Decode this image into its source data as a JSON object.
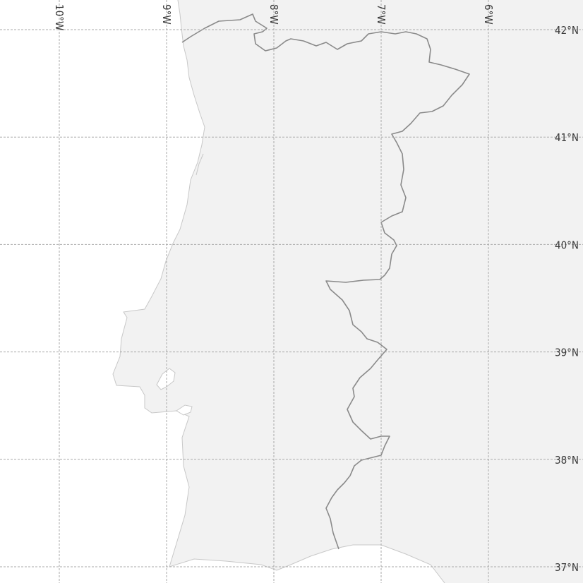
{
  "map": {
    "colors": {
      "sea": "#ffffff",
      "land": "#f2f2f2",
      "coastline": "#c8c8c8",
      "border": "#8a8a8a",
      "graticule": "#a9a9a9",
      "label": "#3a3a3a"
    },
    "longitude_labels": [
      {
        "lon": -10,
        "text": "10°W"
      },
      {
        "lon": -9,
        "text": "9°W"
      },
      {
        "lon": -8,
        "text": "8°W"
      },
      {
        "lon": -7,
        "text": "7°W"
      },
      {
        "lon": -6,
        "text": "6°W"
      }
    ],
    "latitude_labels": [
      {
        "lat": 42,
        "text": "42°N"
      },
      {
        "lat": 41,
        "text": "41°N"
      },
      {
        "lat": 40,
        "text": "40°N"
      },
      {
        "lat": 39,
        "text": "39°N"
      },
      {
        "lat": 38,
        "text": "38°N"
      },
      {
        "lat": 37,
        "text": "37°N"
      }
    ]
  }
}
